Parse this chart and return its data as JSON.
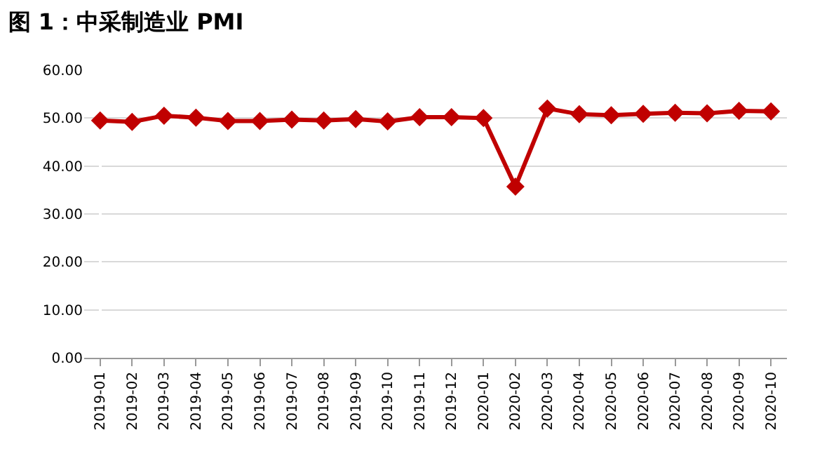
{
  "chart_data": {
    "type": "line",
    "title": "图 1：中采制造业 PMI",
    "categories": [
      "2019-01",
      "2019-02",
      "2019-03",
      "2019-04",
      "2019-05",
      "2019-06",
      "2019-07",
      "2019-08",
      "2019-09",
      "2019-10",
      "2019-11",
      "2019-12",
      "2020-01",
      "2020-02",
      "2020-03",
      "2020-04",
      "2020-05",
      "2020-06",
      "2020-07",
      "2020-08",
      "2020-09",
      "2020-10"
    ],
    "series": [
      {
        "color": "#c00000",
        "values": [
          49.5,
          49.2,
          50.5,
          50.1,
          49.4,
          49.4,
          49.7,
          49.5,
          49.8,
          49.3,
          50.2,
          50.2,
          50.0,
          35.7,
          52.0,
          50.8,
          50.6,
          50.9,
          51.1,
          51.0,
          51.5,
          51.4
        ]
      }
    ],
    "ylim": [
      0,
      60
    ],
    "yticks": [
      {
        "value": 0,
        "label": "0.00"
      },
      {
        "value": 10,
        "label": "10.00"
      },
      {
        "value": 20,
        "label": "20.00"
      },
      {
        "value": 30,
        "label": "30.00"
      },
      {
        "value": 40,
        "label": "40.00"
      },
      {
        "value": 50,
        "label": "50.00"
      },
      {
        "value": 60,
        "label": "60.00"
      }
    ],
    "grid": "y",
    "legend": false,
    "marker": "diamond",
    "line_style": "solid"
  }
}
